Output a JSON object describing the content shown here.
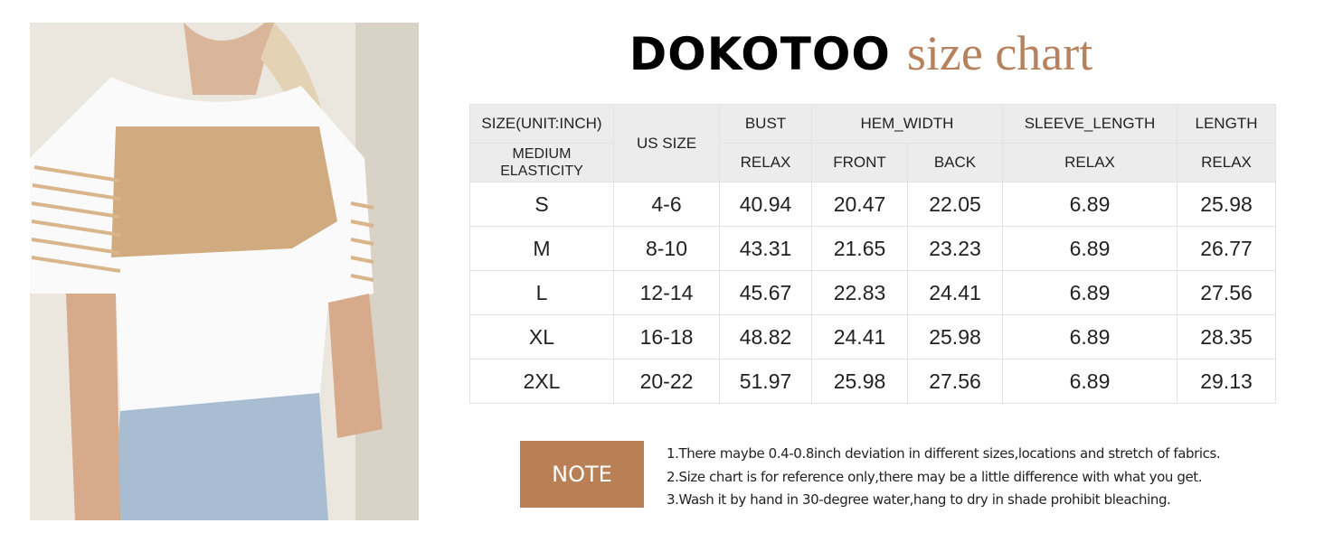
{
  "title": {
    "brand": "DOKOTOO",
    "subtitle": "size chart"
  },
  "colors": {
    "accent": "#b97f55",
    "title_accent": "#b5825d",
    "header_bg": "#ececec"
  },
  "table": {
    "header": {
      "size": "SIZE(UNIT:INCH)",
      "elasticity": "MEDIUM ELASTICITY",
      "us_size": "US SIZE",
      "bust": "BUST",
      "hem_width": "HEM_WIDTH",
      "sleeve_length": "SLEEVE_LENGTH",
      "length": "LENGTH",
      "bust_sub": "RELAX",
      "hem_front": "FRONT",
      "hem_back": "BACK",
      "sleeve_sub": "RELAX",
      "length_sub": "RELAX"
    },
    "rows": [
      [
        "S",
        "4-6",
        "40.94",
        "20.47",
        "22.05",
        "6.89",
        "25.98"
      ],
      [
        "M",
        "8-10",
        "43.31",
        "21.65",
        "23.23",
        "6.89",
        "26.77"
      ],
      [
        "L",
        "12-14",
        "45.67",
        "22.83",
        "24.41",
        "6.89",
        "27.56"
      ],
      [
        "XL",
        "16-18",
        "48.82",
        "24.41",
        "25.98",
        "6.89",
        "28.35"
      ],
      [
        "2XL",
        "20-22",
        "51.97",
        "25.98",
        "27.56",
        "6.89",
        "29.13"
      ]
    ]
  },
  "note": {
    "label": "NOTE",
    "lines": [
      "1.There maybe 0.4-0.8inch deviation in different sizes,locations and stretch of fabrics.",
      "2.Size chart is for reference only,there may be a little difference with what you get.",
      "3.Wash it by hand in 30-degree water,hang to dry in shade prohibit bleaching."
    ]
  }
}
